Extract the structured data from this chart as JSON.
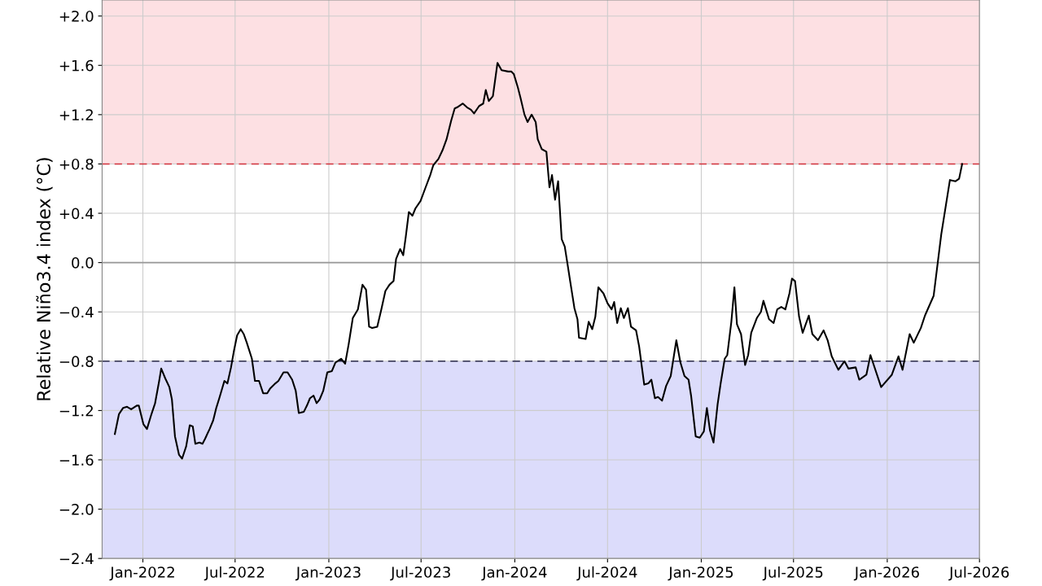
{
  "chart_data": {
    "type": "line",
    "ylabel": "Relative Niño3.4 index (°C)",
    "x": [
      "2021-11-07",
      "2021-11-15",
      "2021-11-23",
      "2021-12-01",
      "2021-12-09",
      "2021-12-20",
      "2021-12-24",
      "2022-01-02",
      "2022-01-09",
      "2022-01-17",
      "2022-01-25",
      "2022-02-02",
      "2022-02-06",
      "2022-02-14",
      "2022-02-22",
      "2022-02-27",
      "2022-03-05",
      "2022-03-13",
      "2022-03-19",
      "2022-03-27",
      "2022-04-03",
      "2022-04-09",
      "2022-04-14",
      "2022-04-22",
      "2022-04-28",
      "2022-05-03",
      "2022-05-12",
      "2022-05-19",
      "2022-05-25",
      "2022-05-31",
      "2022-06-10",
      "2022-06-16",
      "2022-06-23",
      "2022-06-29",
      "2022-07-05",
      "2022-07-12",
      "2022-07-18",
      "2022-07-24",
      "2022-08-03",
      "2022-08-09",
      "2022-08-17",
      "2022-08-25",
      "2022-09-02",
      "2022-09-08",
      "2022-09-18",
      "2022-09-24",
      "2022-10-04",
      "2022-10-12",
      "2022-10-21",
      "2022-10-28",
      "2022-11-03",
      "2022-11-13",
      "2022-11-19",
      "2022-11-25",
      "2022-12-02",
      "2022-12-08",
      "2022-12-14",
      "2022-12-21",
      "2022-12-29",
      "2023-01-07",
      "2023-01-14",
      "2023-01-18",
      "2023-01-25",
      "2023-02-02",
      "2023-02-09",
      "2023-02-17",
      "2023-02-27",
      "2023-03-08",
      "2023-03-15",
      "2023-03-21",
      "2023-03-27",
      "2023-04-06",
      "2023-04-14",
      "2023-04-22",
      "2023-04-30",
      "2023-05-08",
      "2023-05-13",
      "2023-05-21",
      "2023-05-27",
      "2023-06-01",
      "2023-06-07",
      "2023-06-14",
      "2023-06-20",
      "2023-06-30",
      "2023-07-09",
      "2023-07-19",
      "2023-07-25",
      "2023-08-04",
      "2023-08-12",
      "2023-08-20",
      "2023-08-29",
      "2023-09-05",
      "2023-09-10",
      "2023-09-21",
      "2023-09-29",
      "2023-10-07",
      "2023-10-13",
      "2023-10-23",
      "2023-10-31",
      "2023-11-05",
      "2023-11-11",
      "2023-11-19",
      "2023-11-28",
      "2023-12-06",
      "2023-12-19",
      "2023-12-25",
      "2023-12-30",
      "2024-01-07",
      "2024-01-12",
      "2024-01-20",
      "2024-01-26",
      "2024-02-03",
      "2024-02-11",
      "2024-02-15",
      "2024-02-23",
      "2024-03-03",
      "2024-03-09",
      "2024-03-14",
      "2024-03-20",
      "2024-03-26",
      "2024-04-02",
      "2024-04-08",
      "2024-04-13",
      "2024-04-19",
      "2024-04-27",
      "2024-05-03",
      "2024-05-06",
      "2024-05-19",
      "2024-05-25",
      "2024-06-01",
      "2024-06-07",
      "2024-06-13",
      "2024-06-23",
      "2024-07-01",
      "2024-07-09",
      "2024-07-14",
      "2024-07-20",
      "2024-07-27",
      "2024-08-02",
      "2024-08-10",
      "2024-08-16",
      "2024-08-26",
      "2024-09-01",
      "2024-09-11",
      "2024-09-19",
      "2024-09-25",
      "2024-10-02",
      "2024-10-08",
      "2024-10-16",
      "2024-10-24",
      "2024-11-02",
      "2024-11-13",
      "2024-11-21",
      "2024-11-29",
      "2024-12-07",
      "2024-12-12",
      "2024-12-21",
      "2024-12-29",
      "2025-01-06",
      "2025-01-12",
      "2025-01-18",
      "2025-01-25",
      "2025-02-02",
      "2025-02-08",
      "2025-02-16",
      "2025-02-21",
      "2025-03-01",
      "2025-03-07",
      "2025-03-12",
      "2025-03-20",
      "2025-03-28",
      "2025-04-03",
      "2025-04-09",
      "2025-04-20",
      "2025-04-28",
      "2025-05-03",
      "2025-05-14",
      "2025-05-23",
      "2025-05-30",
      "2025-06-07",
      "2025-06-15",
      "2025-06-23",
      "2025-06-28",
      "2025-07-04",
      "2025-07-12",
      "2025-07-19",
      "2025-07-31",
      "2025-08-07",
      "2025-08-18",
      "2025-08-29",
      "2025-09-06",
      "2025-09-14",
      "2025-09-27",
      "2025-10-09",
      "2025-10-17",
      "2025-10-31",
      "2025-11-07",
      "2025-11-21",
      "2025-11-29",
      "2025-12-20",
      "2026-01-10",
      "2026-01-23",
      "2026-01-31",
      "2026-02-14",
      "2026-02-22",
      "2026-03-08",
      "2026-03-16",
      "2026-04-02",
      "2026-04-17",
      "2026-05-04",
      "2026-05-15",
      "2026-05-22",
      "2026-05-28"
    ],
    "series": [
      {
        "color": "#000000",
        "values": [
          -1.39,
          -1.23,
          -1.18,
          -1.17,
          -1.19,
          -1.16,
          -1.16,
          -1.31,
          -1.35,
          -1.24,
          -1.14,
          -0.96,
          -0.86,
          -0.94,
          -1.01,
          -1.11,
          -1.41,
          -1.56,
          -1.59,
          -1.49,
          -1.32,
          -1.33,
          -1.47,
          -1.46,
          -1.47,
          -1.43,
          -1.35,
          -1.28,
          -1.18,
          -1.1,
          -0.96,
          -0.98,
          -0.85,
          -0.71,
          -0.59,
          -0.54,
          -0.58,
          -0.65,
          -0.78,
          -0.96,
          -0.96,
          -1.06,
          -1.06,
          -1.02,
          -0.98,
          -0.96,
          -0.89,
          -0.89,
          -0.95,
          -1.04,
          -1.22,
          -1.21,
          -1.16,
          -1.1,
          -1.08,
          -1.14,
          -1.11,
          -1.04,
          -0.89,
          -0.88,
          -0.81,
          -0.8,
          -0.78,
          -0.82,
          -0.66,
          -0.45,
          -0.38,
          -0.18,
          -0.22,
          -0.52,
          -0.53,
          -0.52,
          -0.38,
          -0.23,
          -0.18,
          -0.15,
          0.03,
          0.11,
          0.06,
          0.21,
          0.41,
          0.38,
          0.44,
          0.5,
          0.6,
          0.71,
          0.79,
          0.84,
          0.91,
          1.0,
          1.15,
          1.25,
          1.26,
          1.29,
          1.26,
          1.24,
          1.21,
          1.27,
          1.29,
          1.4,
          1.31,
          1.35,
          1.62,
          1.56,
          1.55,
          1.55,
          1.53,
          1.42,
          1.34,
          1.2,
          1.14,
          1.2,
          1.14,
          1.0,
          0.92,
          0.9,
          0.61,
          0.71,
          0.51,
          0.66,
          0.19,
          0.13,
          0.0,
          -0.16,
          -0.37,
          -0.46,
          -0.61,
          -0.62,
          -0.48,
          -0.54,
          -0.44,
          -0.2,
          -0.25,
          -0.33,
          -0.38,
          -0.32,
          -0.49,
          -0.37,
          -0.45,
          -0.37,
          -0.52,
          -0.55,
          -0.68,
          -0.99,
          -0.98,
          -0.95,
          -1.1,
          -1.09,
          -1.12,
          -1.0,
          -0.92,
          -0.63,
          -0.81,
          -0.92,
          -0.95,
          -1.08,
          -1.41,
          -1.42,
          -1.37,
          -1.18,
          -1.36,
          -1.46,
          -1.15,
          -0.98,
          -0.78,
          -0.75,
          -0.48,
          -0.2,
          -0.5,
          -0.58,
          -0.83,
          -0.75,
          -0.57,
          -0.45,
          -0.4,
          -0.31,
          -0.46,
          -0.49,
          -0.38,
          -0.36,
          -0.38,
          -0.25,
          -0.13,
          -0.15,
          -0.44,
          -0.57,
          -0.43,
          -0.58,
          -0.63,
          -0.55,
          -0.63,
          -0.76,
          -0.87,
          -0.8,
          -0.86,
          -0.85,
          -0.95,
          -0.91,
          -0.75,
          -1.01,
          -0.91,
          -0.76,
          -0.87,
          -0.58,
          -0.65,
          -0.53,
          -0.43,
          -0.27,
          0.23,
          0.67,
          0.66,
          0.68,
          0.8
        ]
      }
    ],
    "xlim": [
      "2021-10-13",
      "2026-07-01"
    ],
    "xticks": [
      {
        "value": "2022-01-01",
        "label": "Jan-2022"
      },
      {
        "value": "2022-07-01",
        "label": "Jul-2022"
      },
      {
        "value": "2023-01-01",
        "label": "Jan-2023"
      },
      {
        "value": "2023-07-01",
        "label": "Jul-2023"
      },
      {
        "value": "2024-01-01",
        "label": "Jan-2024"
      },
      {
        "value": "2024-07-01",
        "label": "Jul-2024"
      },
      {
        "value": "2025-01-01",
        "label": "Jan-2025"
      },
      {
        "value": "2025-07-01",
        "label": "Jul-2025"
      },
      {
        "value": "2026-01-01",
        "label": "Jan-2026"
      },
      {
        "value": "2026-07-01",
        "label": "Jul-2026"
      }
    ],
    "ylim": [
      -2.4,
      2.13
    ],
    "yticks": [
      {
        "value": -2.4,
        "label": "−2.4"
      },
      {
        "value": -2.0,
        "label": "−2.0"
      },
      {
        "value": -1.6,
        "label": "−1.6"
      },
      {
        "value": -1.2,
        "label": "−1.2"
      },
      {
        "value": -0.8,
        "label": "−0.8"
      },
      {
        "value": -0.4,
        "label": "−0.4"
      },
      {
        "value": 0.0,
        "label": "0.0"
      },
      {
        "value": 0.4,
        "label": "+0.4"
      },
      {
        "value": 0.8,
        "label": "+0.8"
      },
      {
        "value": 1.2,
        "label": "+1.2"
      },
      {
        "value": 1.6,
        "label": "+1.6"
      },
      {
        "value": 2.0,
        "label": "+2.0"
      }
    ],
    "bands": [
      {
        "axis": "y",
        "from": 0.8,
        "to": 2.13,
        "color": "#fde0e3"
      },
      {
        "axis": "y",
        "from": -2.4,
        "to": -0.8,
        "color": "#dcdcfb"
      }
    ],
    "ref_lines": [
      {
        "axis": "y",
        "value": 0.8,
        "color": "#d0303a",
        "line_style": "dashed"
      },
      {
        "axis": "y",
        "value": -0.8,
        "color": "#2a2a4a",
        "line_style": "dashed"
      },
      {
        "axis": "y",
        "value": 0.0,
        "color": "#999999",
        "line_style": "solid"
      }
    ],
    "grid": true,
    "marker": "none",
    "line_style": "solid",
    "legend": false
  }
}
